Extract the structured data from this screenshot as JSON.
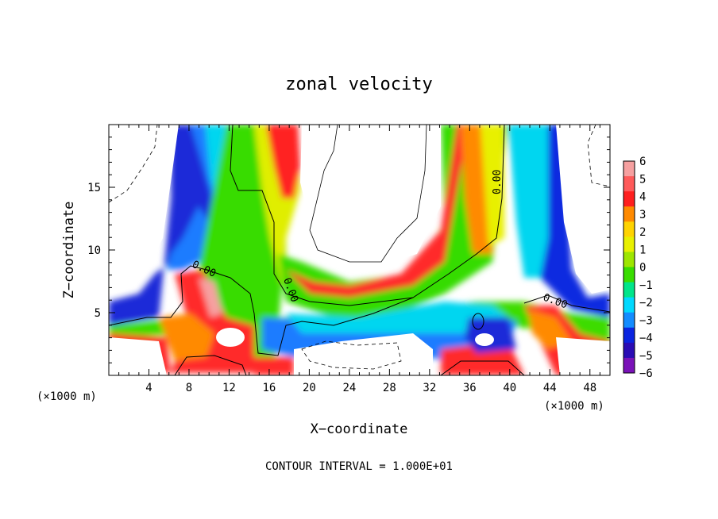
{
  "chart_data": {
    "type": "heatmap",
    "title": "zonal velocity",
    "xlabel": "X−coordinate",
    "ylabel": "Z−coordinate",
    "x_unit_left": "(×1000 m)",
    "x_unit_right": "(×1000 m)",
    "footer": "CONTOUR INTERVAL = 1.000E+01",
    "xlim": [
      0,
      50
    ],
    "ylim": [
      0,
      20
    ],
    "x_ticks": [
      4,
      8,
      12,
      16,
      20,
      24,
      28,
      32,
      36,
      40,
      44,
      48
    ],
    "y_ticks": [
      5,
      10,
      15
    ],
    "contour_labels": [
      {
        "text": "0.00",
        "x": 9.5,
        "z": 8.8
      },
      {
        "text": "0.00",
        "x": 18.2,
        "z": 6.5
      },
      {
        "text": "0.00",
        "x": 39.5,
        "z": 15.8
      },
      {
        "text": "0.00",
        "x": 44.5,
        "z": 5.9
      }
    ],
    "colorbar": {
      "labels": [
        "6",
        "5",
        "4",
        "3",
        "2",
        "1",
        "0",
        "−1",
        "−2",
        "−3",
        "−4",
        "−5",
        "−6"
      ],
      "colors": [
        "#f6a0a0",
        "#ff5a5a",
        "#ff1f1f",
        "#ff8a00",
        "#ffd300",
        "#e8f000",
        "#9ee600",
        "#39dd00",
        "#00e58a",
        "#00d9ff",
        "#138cff",
        "#0a24e0",
        "#2a0cb4",
        "#7a12b8"
      ]
    }
  }
}
